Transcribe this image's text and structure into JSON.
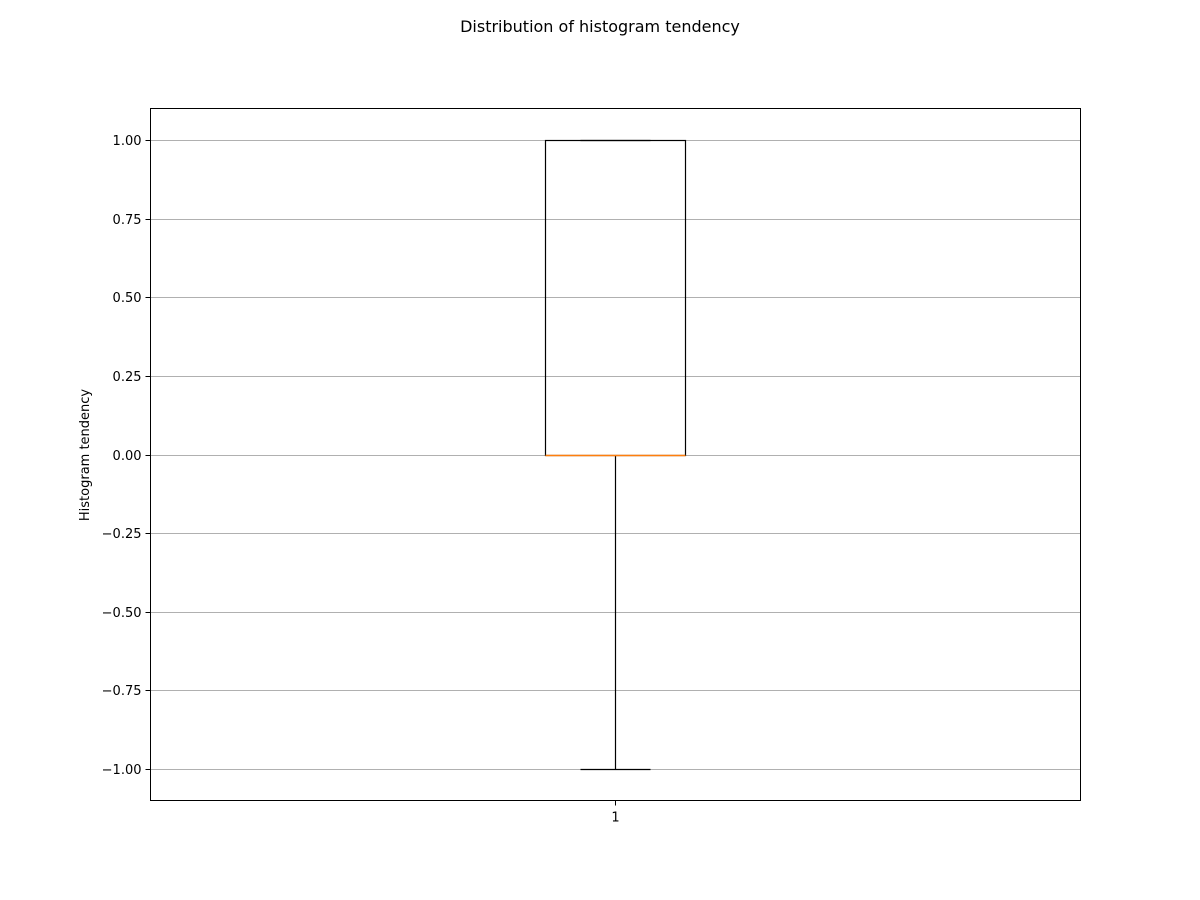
{
  "chart_data": {
    "type": "box",
    "title": "Distribution of histogram tendency",
    "ylabel": "Histogram tendency",
    "xlabel": "",
    "ylim": [
      -1.1,
      1.1
    ],
    "grid": "y",
    "x_tick_labels": [
      "1"
    ],
    "y_ticks": [
      -1.0,
      -0.75,
      -0.5,
      -0.25,
      0.0,
      0.25,
      0.5,
      0.75,
      1.0
    ],
    "y_tick_labels": [
      "−1.00",
      "−0.75",
      "−0.50",
      "−0.25",
      "0.00",
      "0.25",
      "0.50",
      "0.75",
      "1.00"
    ],
    "boxes": [
      {
        "label": "1",
        "whisker_low": -1.0,
        "q1": 0.0,
        "median": 0.0,
        "q3": 1.0,
        "whisker_high": 1.0
      }
    ],
    "colors": {
      "box": "#000000",
      "median": "#ff7f0e",
      "grid": "#b0b0b0"
    }
  }
}
